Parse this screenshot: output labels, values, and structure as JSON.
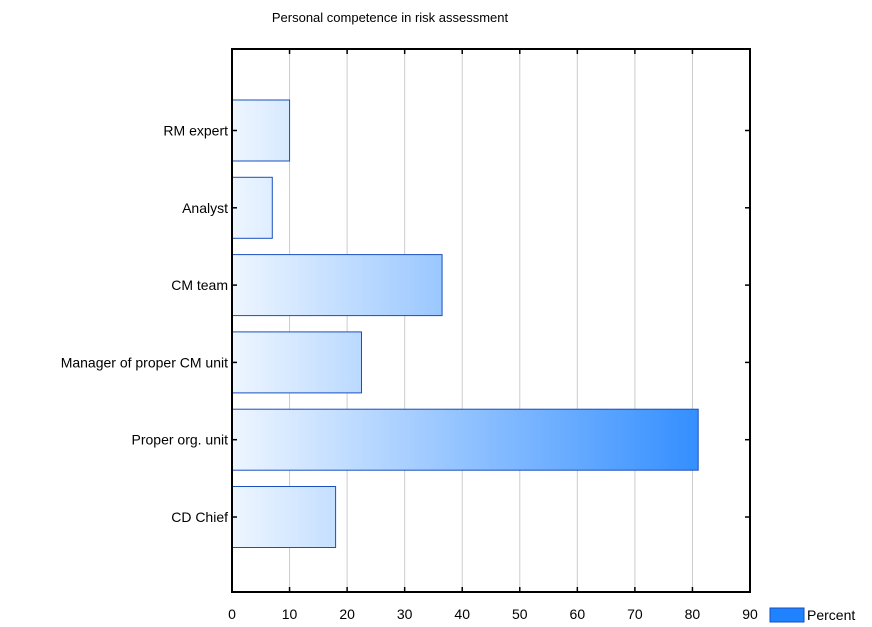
{
  "chart_data": {
    "type": "bar",
    "orientation": "horizontal",
    "title": "Personal competence in risk assessment",
    "categories": [
      "RM expert",
      "Analyst",
      "CM team",
      "Manager of proper CM unit",
      "Proper org. unit",
      "CD Chief"
    ],
    "series": [
      {
        "name": "Percent",
        "values": [
          10,
          7,
          36.5,
          22.5,
          81,
          18
        ]
      }
    ],
    "xlim": [
      0,
      90
    ],
    "xticks": [
      "0",
      "10",
      "20",
      "30",
      "40",
      "50",
      "60",
      "70",
      "80",
      "90"
    ],
    "grid": true,
    "legend_position": "bottom-right",
    "colors": {
      "bar_fill_start": "#eef6ff",
      "bar_fill_end": "#1f83ff",
      "bar_stroke": "#1a4fbf",
      "grid": "#cccccc",
      "axis": "#000000",
      "legend_swatch": "#1f83ff"
    }
  }
}
